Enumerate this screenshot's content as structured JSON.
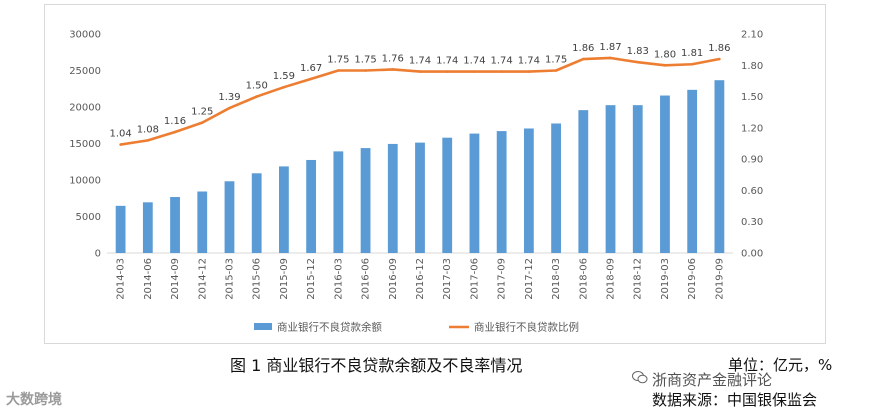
{
  "chart_data": {
    "type": "bar",
    "categories": [
      "2014-03",
      "2014-06",
      "2014-09",
      "2014-12",
      "2015-03",
      "2015-06",
      "2015-09",
      "2015-12",
      "2016-03",
      "2016-06",
      "2016-09",
      "2016-12",
      "2017-03",
      "2017-06",
      "2017-09",
      "2017-12",
      "2018-03",
      "2018-06",
      "2018-09",
      "2018-12",
      "2019-03",
      "2019-06",
      "2019-09"
    ],
    "series": [
      {
        "name": "商业银行不良贷款余额",
        "type": "bar",
        "axis": "left",
        "color": "#5b9bd5",
        "values": [
          6461,
          6944,
          7669,
          8426,
          9825,
          10919,
          11863,
          12744,
          13921,
          14373,
          14940,
          15122,
          15795,
          16358,
          16702,
          17057,
          17742,
          19571,
          20254,
          20254,
          21571,
          22352,
          23672
        ]
      },
      {
        "name": "商业银行不良贷款比例",
        "type": "line",
        "axis": "right",
        "color": "#ed7d31",
        "values": [
          1.04,
          1.08,
          1.16,
          1.25,
          1.39,
          1.5,
          1.59,
          1.67,
          1.75,
          1.75,
          1.76,
          1.74,
          1.74,
          1.74,
          1.74,
          1.74,
          1.75,
          1.86,
          1.87,
          1.83,
          1.8,
          1.81,
          1.86
        ],
        "labels": [
          "1.04",
          "1.08",
          "1.16",
          "1.25",
          "1.39",
          "1.50",
          "1.59",
          "1.67",
          "1.75",
          "1.75",
          "1.76",
          "1.74",
          "1.74",
          "1.74",
          "1.74",
          "1.74",
          "1.75",
          "1.86",
          "1.87",
          "1.83",
          "1.80",
          "1.81",
          "1.86"
        ]
      }
    ],
    "y_left": {
      "min": 0,
      "max": 30000,
      "ticks": [
        "0",
        "5000",
        "10000",
        "15000",
        "20000",
        "25000",
        "30000"
      ]
    },
    "y_right": {
      "min": 0,
      "max": 2.1,
      "ticks": [
        "0.00",
        "0.30",
        "0.60",
        "0.90",
        "1.20",
        "1.50",
        "1.80",
        "2.10"
      ]
    },
    "grid": false,
    "legend_position": "bottom"
  },
  "caption": "图 1  商业银行不良贷款余额及不良率情况",
  "unit": "单位：亿元，%",
  "source": "数据来源：中国银保监会",
  "watermark_right": "浙商资产金融评论",
  "watermark_left": "大数跨境"
}
